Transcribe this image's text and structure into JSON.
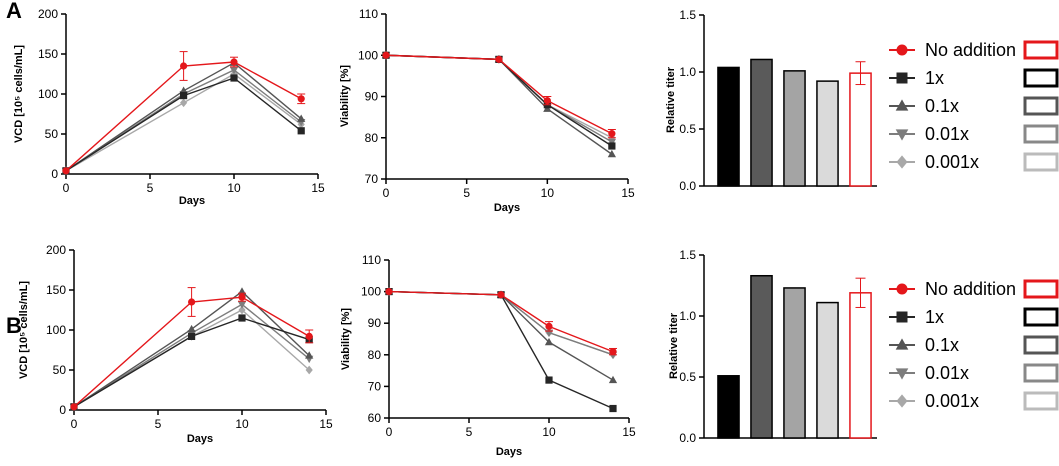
{
  "figure": {
    "rows": [
      {
        "label": "A",
        "vcd": {
          "type": "line",
          "ylabel": "VCD [10⁵ cells/mL]",
          "xlabel": "Days",
          "xlim": [
            0,
            15
          ],
          "ylim": [
            0,
            200
          ],
          "xticks": [
            "0",
            "5",
            "10",
            "15"
          ],
          "yticks": [
            "0",
            "50",
            "100",
            "150",
            "200"
          ],
          "x": [
            0,
            7,
            10,
            14
          ],
          "series": [
            {
              "name": "0.001x",
              "values": [
                4,
                89,
                125,
                62
              ]
            },
            {
              "name": "0.01x",
              "values": [
                4,
                100,
                130,
                65
              ]
            },
            {
              "name": "0.1x",
              "values": [
                4,
                104,
                139,
                69
              ]
            },
            {
              "name": "1x",
              "values": [
                4,
                98,
                120,
                54
              ]
            },
            {
              "name": "No addition",
              "values": [
                4,
                135,
                140,
                94
              ],
              "err": [
                0,
                18,
                6,
                6
              ]
            }
          ]
        },
        "viability": {
          "type": "line",
          "ylabel": "Viability [%]",
          "xlabel": "Days",
          "xlim": [
            0,
            15
          ],
          "ylim": [
            70,
            110
          ],
          "xticks": [
            "0",
            "5",
            "10",
            "15"
          ],
          "yticks": [
            "70",
            "80",
            "90",
            "100",
            "110"
          ],
          "x": [
            0,
            7,
            10,
            14
          ],
          "series": [
            {
              "name": "0.001x",
              "values": [
                100,
                99,
                88,
                80
              ]
            },
            {
              "name": "0.01x",
              "values": [
                100,
                99,
                88,
                79
              ]
            },
            {
              "name": "0.1x",
              "values": [
                100,
                99,
                87,
                76
              ]
            },
            {
              "name": "1x",
              "values": [
                100,
                99,
                88,
                78
              ]
            },
            {
              "name": "No addition",
              "values": [
                100,
                99,
                89,
                81
              ],
              "err": [
                0,
                0,
                1,
                1
              ]
            }
          ]
        },
        "titer": {
          "type": "bar",
          "ylabel": "Relative titer",
          "ylim": [
            0,
            1.5
          ],
          "yticks": [
            "0.0",
            "0.5",
            "1.0",
            "1.5"
          ],
          "categories": [
            "1x",
            "0.1x",
            "0.01x",
            "0.001x",
            "No addition"
          ],
          "values": [
            1.04,
            1.11,
            1.01,
            0.92,
            0.99
          ],
          "err": [
            0,
            0,
            0,
            0,
            0.1
          ]
        }
      },
      {
        "label": "B",
        "vcd": {
          "type": "line",
          "ylabel": "VCD [10⁵ cells/mL]",
          "xlabel": "Days",
          "xlim": [
            0,
            15
          ],
          "ylim": [
            0,
            200
          ],
          "xticks": [
            "0",
            "5",
            "10",
            "15"
          ],
          "yticks": [
            "0",
            "50",
            "100",
            "150",
            "200"
          ],
          "x": [
            0,
            7,
            10,
            14
          ],
          "series": [
            {
              "name": "0.001x",
              "values": [
                4,
                92,
                125,
                50
              ]
            },
            {
              "name": "0.01x",
              "values": [
                4,
                96,
                132,
                64
              ]
            },
            {
              "name": "0.1x",
              "values": [
                4,
                101,
                148,
                68
              ]
            },
            {
              "name": "1x",
              "values": [
                4,
                92,
                115,
                88
              ]
            },
            {
              "name": "No addition",
              "values": [
                4,
                135,
                141,
                92
              ],
              "err": [
                0,
                18,
                5,
                8
              ]
            }
          ]
        },
        "viability": {
          "type": "line",
          "ylabel": "Viability [%]",
          "xlabel": "Days",
          "xlim": [
            0,
            15
          ],
          "ylim": [
            60,
            110
          ],
          "xticks": [
            "0",
            "5",
            "10",
            "15"
          ],
          "yticks": [
            "60",
            "70",
            "80",
            "90",
            "100",
            "110"
          ],
          "x": [
            0,
            7,
            10,
            14
          ],
          "series": [
            {
              "name": "0.001x",
              "values": [
                100,
                99,
                87,
                80
              ]
            },
            {
              "name": "0.01x",
              "values": [
                100,
                99,
                87,
                80
              ]
            },
            {
              "name": "0.1x",
              "values": [
                100,
                99,
                84,
                72
              ]
            },
            {
              "name": "1x",
              "values": [
                100,
                99,
                72,
                63
              ]
            },
            {
              "name": "No addition",
              "values": [
                100,
                99,
                89,
                81
              ],
              "err": [
                0,
                0,
                1.5,
                1
              ]
            }
          ]
        },
        "titer": {
          "type": "bar",
          "ylabel": "Relative titer",
          "ylim": [
            0,
            1.5
          ],
          "yticks": [
            "0.0",
            "0.5",
            "1.0",
            "1.5"
          ],
          "categories": [
            "1x",
            "0.1x",
            "0.01x",
            "0.001x",
            "No addition"
          ],
          "values": [
            0.51,
            1.33,
            1.23,
            1.11,
            1.19
          ],
          "err": [
            0,
            0,
            0,
            0,
            0.12
          ]
        }
      }
    ],
    "legend": [
      {
        "name": "No addition",
        "marker": "circle"
      },
      {
        "name": "1x",
        "marker": "square"
      },
      {
        "name": "0.1x",
        "marker": "triangle-up"
      },
      {
        "name": "0.01x",
        "marker": "triangle-down"
      },
      {
        "name": "0.001x",
        "marker": "diamond"
      }
    ],
    "colors": {
      "No addition": "#e4171b",
      "1x": "#262626",
      "0.1x": "#555555",
      "0.01x": "#7d7d7d",
      "0.001x": "#a8a8a8"
    },
    "bar_colors": {
      "1x": "#000000",
      "0.1x": "#5a5a5a",
      "0.01x": "#a4a4a4",
      "0.001x": "#dadada",
      "No addition": "#ffffff"
    },
    "bar_edge_colors": {
      "1x": "#000000",
      "0.1x": "#000000",
      "0.01x": "#000000",
      "0.001x": "#000000",
      "No addition": "#e4171b"
    },
    "legend_box_colors": {
      "No addition": "#e4171b",
      "1x": "#000000",
      "0.1x": "#555555",
      "0.01x": "#888888",
      "0.001x": "#bbbbbb"
    }
  },
  "chart_data": [
    {
      "type": "line",
      "panel": "A",
      "title": "",
      "xlabel": "Days",
      "ylabel": "VCD [10⁵ cells/mL]",
      "xlim": [
        0,
        15
      ],
      "ylim": [
        0,
        200
      ],
      "x": [
        0,
        7,
        10,
        14
      ],
      "series": [
        {
          "name": "No addition",
          "values": [
            4,
            135,
            140,
            94
          ]
        },
        {
          "name": "1x",
          "values": [
            4,
            98,
            120,
            54
          ]
        },
        {
          "name": "0.1x",
          "values": [
            4,
            104,
            139,
            69
          ]
        },
        {
          "name": "0.01x",
          "values": [
            4,
            100,
            130,
            65
          ]
        },
        {
          "name": "0.001x",
          "values": [
            4,
            89,
            125,
            62
          ]
        }
      ]
    },
    {
      "type": "line",
      "panel": "A",
      "title": "",
      "xlabel": "Days",
      "ylabel": "Viability [%]",
      "xlim": [
        0,
        15
      ],
      "ylim": [
        70,
        110
      ],
      "x": [
        0,
        7,
        10,
        14
      ],
      "series": [
        {
          "name": "No addition",
          "values": [
            100,
            99,
            89,
            81
          ]
        },
        {
          "name": "1x",
          "values": [
            100,
            99,
            88,
            78
          ]
        },
        {
          "name": "0.1x",
          "values": [
            100,
            99,
            87,
            76
          ]
        },
        {
          "name": "0.01x",
          "values": [
            100,
            99,
            88,
            79
          ]
        },
        {
          "name": "0.001x",
          "values": [
            100,
            99,
            88,
            80
          ]
        }
      ]
    },
    {
      "type": "bar",
      "panel": "A",
      "title": "",
      "ylabel": "Relative titer",
      "ylim": [
        0,
        1.5
      ],
      "categories": [
        "1x",
        "0.1x",
        "0.01x",
        "0.001x",
        "No addition"
      ],
      "values": [
        1.04,
        1.11,
        1.01,
        0.92,
        0.99
      ]
    },
    {
      "type": "line",
      "panel": "B",
      "title": "",
      "xlabel": "Days",
      "ylabel": "VCD [10⁵ cells/mL]",
      "xlim": [
        0,
        15
      ],
      "ylim": [
        0,
        200
      ],
      "x": [
        0,
        7,
        10,
        14
      ],
      "series": [
        {
          "name": "No addition",
          "values": [
            4,
            135,
            141,
            92
          ]
        },
        {
          "name": "1x",
          "values": [
            4,
            92,
            115,
            88
          ]
        },
        {
          "name": "0.1x",
          "values": [
            4,
            101,
            148,
            68
          ]
        },
        {
          "name": "0.01x",
          "values": [
            4,
            96,
            132,
            64
          ]
        },
        {
          "name": "0.001x",
          "values": [
            4,
            92,
            125,
            50
          ]
        }
      ]
    },
    {
      "type": "line",
      "panel": "B",
      "title": "",
      "xlabel": "Days",
      "ylabel": "Viability [%]",
      "xlim": [
        0,
        15
      ],
      "ylim": [
        60,
        110
      ],
      "x": [
        0,
        7,
        10,
        14
      ],
      "series": [
        {
          "name": "No addition",
          "values": [
            100,
            99,
            89,
            81
          ]
        },
        {
          "name": "1x",
          "values": [
            100,
            99,
            72,
            63
          ]
        },
        {
          "name": "0.1x",
          "values": [
            100,
            99,
            84,
            72
          ]
        },
        {
          "name": "0.01x",
          "values": [
            100,
            99,
            87,
            80
          ]
        },
        {
          "name": "0.001x",
          "values": [
            100,
            99,
            87,
            80
          ]
        }
      ]
    },
    {
      "type": "bar",
      "panel": "B",
      "title": "",
      "ylabel": "Relative titer",
      "ylim": [
        0,
        1.5
      ],
      "categories": [
        "1x",
        "0.1x",
        "0.01x",
        "0.001x",
        "No addition"
      ],
      "values": [
        0.51,
        1.33,
        1.23,
        1.11,
        1.19
      ]
    }
  ]
}
